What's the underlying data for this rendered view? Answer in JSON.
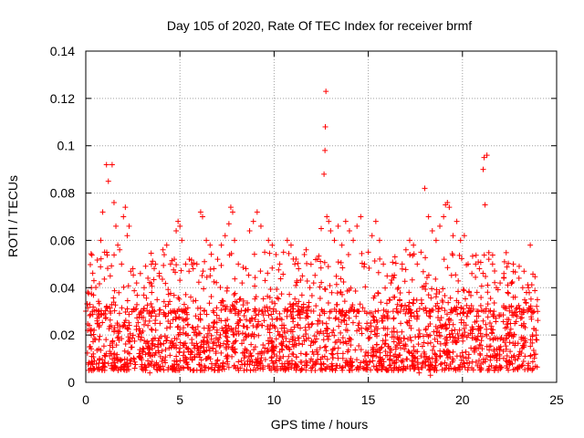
{
  "chart_data": {
    "type": "scatter",
    "title": "Day 105 of 2020, Rate Of TEC Index for receiver brmf",
    "xlabel": "GPS time / hours",
    "ylabel": "ROTI / TECUs",
    "xlim": [
      0,
      25
    ],
    "ylim": [
      0,
      0.14
    ],
    "x_ticks": [
      0,
      5,
      10,
      15,
      20,
      25
    ],
    "x_tick_labels": [
      "0",
      "5",
      "10",
      "15",
      "20",
      "25"
    ],
    "y_ticks": [
      0,
      0.02,
      0.04,
      0.06,
      0.08,
      0.1,
      0.12,
      0.14
    ],
    "y_tick_labels": [
      "0",
      "0.02",
      "0.04",
      "0.06",
      "0.08",
      "0.1",
      "0.12",
      "0.14"
    ],
    "grid": true,
    "marker": "+",
    "colors": {
      "points": "#ff0000",
      "grid": "#a0a0a0",
      "axes": "#000000"
    },
    "series": [
      {
        "name": "ROTI",
        "points": [
          [
            0.1,
            0.022
          ],
          [
            0.2,
            0.015
          ],
          [
            0.3,
            0.04
          ],
          [
            0.4,
            0.012
          ],
          [
            0.5,
            0.018
          ],
          [
            0.6,
            0.026
          ],
          [
            0.7,
            0.03
          ],
          [
            0.8,
            0.06
          ],
          [
            0.9,
            0.072
          ],
          [
            1.0,
            0.055
          ],
          [
            1.1,
            0.092
          ],
          [
            1.2,
            0.085
          ],
          [
            1.3,
            0.045
          ],
          [
            1.4,
            0.092
          ],
          [
            1.5,
            0.076
          ],
          [
            1.6,
            0.066
          ],
          [
            1.7,
            0.058
          ],
          [
            1.8,
            0.056
          ],
          [
            1.9,
            0.05
          ],
          [
            2.0,
            0.07
          ],
          [
            2.1,
            0.074
          ],
          [
            2.2,
            0.062
          ],
          [
            2.3,
            0.066
          ],
          [
            2.5,
            0.048
          ],
          [
            2.7,
            0.042
          ],
          [
            2.9,
            0.046
          ],
          [
            3.1,
            0.04
          ],
          [
            3.3,
            0.044
          ],
          [
            3.5,
            0.038
          ],
          [
            3.7,
            0.05
          ],
          [
            3.9,
            0.045
          ],
          [
            4.1,
            0.056
          ],
          [
            4.3,
            0.058
          ],
          [
            4.5,
            0.05
          ],
          [
            4.7,
            0.052
          ],
          [
            4.8,
            0.064
          ],
          [
            4.9,
            0.068
          ],
          [
            5.0,
            0.066
          ],
          [
            5.1,
            0.06
          ],
          [
            5.3,
            0.05
          ],
          [
            5.5,
            0.052
          ],
          [
            5.7,
            0.048
          ],
          [
            5.9,
            0.05
          ],
          [
            6.1,
            0.072
          ],
          [
            6.2,
            0.07
          ],
          [
            6.4,
            0.06
          ],
          [
            6.6,
            0.058
          ],
          [
            6.8,
            0.048
          ],
          [
            7.0,
            0.052
          ],
          [
            7.2,
            0.058
          ],
          [
            7.4,
            0.062
          ],
          [
            7.6,
            0.067
          ],
          [
            7.7,
            0.074
          ],
          [
            7.8,
            0.072
          ],
          [
            7.9,
            0.06
          ],
          [
            8.1,
            0.05
          ],
          [
            8.3,
            0.042
          ],
          [
            8.5,
            0.048
          ],
          [
            8.7,
            0.064
          ],
          [
            8.9,
            0.068
          ],
          [
            9.1,
            0.072
          ],
          [
            9.3,
            0.066
          ],
          [
            9.5,
            0.055
          ],
          [
            9.7,
            0.06
          ],
          [
            9.9,
            0.058
          ],
          [
            10.1,
            0.054
          ],
          [
            10.3,
            0.05
          ],
          [
            10.5,
            0.055
          ],
          [
            10.7,
            0.06
          ],
          [
            10.9,
            0.058
          ],
          [
            11.1,
            0.05
          ],
          [
            11.3,
            0.048
          ],
          [
            11.5,
            0.045
          ],
          [
            11.7,
            0.056
          ],
          [
            11.9,
            0.04
          ],
          [
            12.1,
            0.042
          ],
          [
            12.3,
            0.052
          ],
          [
            12.5,
            0.065
          ],
          [
            12.65,
            0.088
          ],
          [
            12.7,
            0.098
          ],
          [
            12.72,
            0.108
          ],
          [
            12.75,
            0.123
          ],
          [
            12.8,
            0.07
          ],
          [
            12.9,
            0.068
          ],
          [
            13.0,
            0.064
          ],
          [
            13.2,
            0.06
          ],
          [
            13.4,
            0.066
          ],
          [
            13.6,
            0.058
          ],
          [
            13.8,
            0.068
          ],
          [
            14.0,
            0.064
          ],
          [
            14.2,
            0.06
          ],
          [
            14.4,
            0.066
          ],
          [
            14.6,
            0.07
          ],
          [
            14.8,
            0.05
          ],
          [
            15.0,
            0.055
          ],
          [
            15.2,
            0.062
          ],
          [
            15.4,
            0.068
          ],
          [
            15.6,
            0.06
          ],
          [
            15.8,
            0.05
          ],
          [
            16.0,
            0.045
          ],
          [
            16.2,
            0.042
          ],
          [
            16.4,
            0.036
          ],
          [
            16.6,
            0.04
          ],
          [
            16.8,
            0.05
          ],
          [
            17.0,
            0.056
          ],
          [
            17.2,
            0.06
          ],
          [
            17.4,
            0.058
          ],
          [
            17.6,
            0.05
          ],
          [
            17.8,
            0.055
          ],
          [
            18.0,
            0.082
          ],
          [
            18.2,
            0.07
          ],
          [
            18.4,
            0.064
          ],
          [
            18.6,
            0.06
          ],
          [
            18.8,
            0.066
          ],
          [
            19.0,
            0.07
          ],
          [
            19.1,
            0.075
          ],
          [
            19.2,
            0.076
          ],
          [
            19.3,
            0.074
          ],
          [
            19.5,
            0.062
          ],
          [
            19.7,
            0.068
          ],
          [
            19.9,
            0.06
          ],
          [
            20.1,
            0.062
          ],
          [
            20.3,
            0.05
          ],
          [
            20.5,
            0.046
          ],
          [
            20.7,
            0.05
          ],
          [
            20.9,
            0.048
          ],
          [
            21.1,
            0.09
          ],
          [
            21.15,
            0.095
          ],
          [
            21.2,
            0.075
          ],
          [
            21.3,
            0.096
          ],
          [
            21.4,
            0.052
          ],
          [
            21.6,
            0.05
          ],
          [
            21.8,
            0.04
          ],
          [
            22.0,
            0.042
          ],
          [
            22.2,
            0.046
          ],
          [
            22.4,
            0.038
          ],
          [
            22.6,
            0.042
          ],
          [
            22.8,
            0.036
          ],
          [
            23.0,
            0.044
          ],
          [
            23.2,
            0.04
          ],
          [
            23.4,
            0.038
          ],
          [
            23.6,
            0.058
          ],
          [
            23.8,
            0.03
          ],
          [
            23.9,
            0.022
          ],
          [
            0.3,
            0.005
          ],
          [
            1.2,
            0.008
          ],
          [
            2.6,
            0.006
          ],
          [
            3.4,
            0.004
          ],
          [
            4.6,
            0.007
          ],
          [
            5.2,
            0.006
          ],
          [
            6.3,
            0.005
          ],
          [
            7.3,
            0.008
          ],
          [
            8.2,
            0.006
          ],
          [
            9.4,
            0.007
          ],
          [
            10.6,
            0.006
          ],
          [
            11.4,
            0.005
          ],
          [
            12.2,
            0.008
          ],
          [
            13.3,
            0.006
          ],
          [
            14.1,
            0.007
          ],
          [
            15.5,
            0.005
          ],
          [
            16.5,
            0.006
          ],
          [
            17.7,
            0.004
          ],
          [
            18.3,
            0.003
          ],
          [
            19.6,
            0.006
          ],
          [
            20.8,
            0.007
          ],
          [
            21.7,
            0.005
          ],
          [
            22.9,
            0.006
          ],
          [
            23.5,
            0.008
          ]
        ]
      }
    ],
    "dense_band": {
      "description": "Dense cluster of points filling the lower region across the whole day",
      "x_range": [
        0,
        24
      ],
      "y_typical_min": 0.005,
      "y_typical_max": 0.03
    }
  }
}
